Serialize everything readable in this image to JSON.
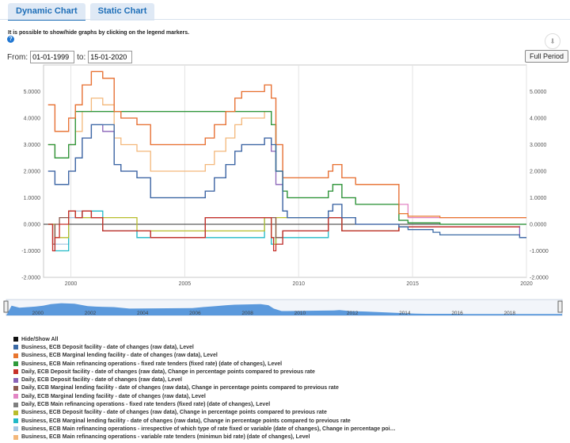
{
  "tabs": [
    {
      "label": "Dynamic Chart"
    },
    {
      "label": "Static Chart"
    }
  ],
  "hint": "It is possible to show/hide graphs by clicking on the legend markers.",
  "help_icon": "?",
  "download_icon": "⬇",
  "range": {
    "from_label": "From:",
    "from_value": "01-01-1999",
    "to_label": "to:",
    "to_value": "15-01-2020",
    "full_period": "Full Period"
  },
  "legend": {
    "hide_show_all": "Hide/Show All",
    "items": [
      {
        "label": "Business, ECB Deposit facility - date of changes (raw data), Level",
        "color": "#3b6aa5"
      },
      {
        "label": "Business, ECB Marginal lending facility - date of changes (raw data), Level",
        "color": "#e8752e"
      },
      {
        "label": "Business, ECB Main refinancing operations - fixed rate tenders (fixed rate) (date of changes), Level",
        "color": "#2f9a3a"
      },
      {
        "label": "Daily, ECB Deposit facility - date of changes (raw data), Change in percentage points compared to previous rate",
        "color": "#c7302a"
      },
      {
        "label": "Daily, ECB Deposit facility - date of changes (raw data), Level",
        "color": "#8a63b8"
      },
      {
        "label": "Daily, ECB Marginal lending facility - date of changes (raw data), Change in percentage points compared to previous rate",
        "color": "#8c5a4e"
      },
      {
        "label": "Daily, ECB Marginal lending facility - date of changes (raw data), Level",
        "color": "#e385c4"
      },
      {
        "label": "Daily, ECB Main refinancing operations - fixed rate tenders (fixed rate) (date of changes), Level",
        "color": "#7f7f7f"
      },
      {
        "label": "Business, ECB Deposit facility - date of changes (raw data), Change in percentage points compared to previous rate",
        "color": "#b8bd2c"
      },
      {
        "label": "Business, ECB Marginal lending facility - date of changes (raw data), Change in percentage points compared to previous rate",
        "color": "#21b9c7"
      },
      {
        "label": "Business, ECB Main refinancing operations - irrespective of which type of rate fixed or variable (date of changes), Change in percentage poi…",
        "color": "#a7c7e3"
      },
      {
        "label": "Business, ECB Main refinancing operations - variable rate tenders (minimun bid rate) (date of changes), Level",
        "color": "#f3b77a"
      }
    ]
  },
  "navigator": {
    "years": [
      "2000",
      "2002",
      "2004",
      "2006",
      "2008",
      "2010",
      "2012",
      "2014",
      "2016",
      "2018"
    ]
  },
  "chart_data": {
    "type": "line",
    "x_ticks": [
      "2000",
      "2005",
      "2010",
      "2015",
      "2020"
    ],
    "y_ticks_left": [
      "5.0000",
      "4.0000",
      "3.0000",
      "2.0000",
      "1.0000",
      "0.0000",
      "-1.0000",
      "-2.0000"
    ],
    "y_ticks_right": [
      "5.0000",
      "4.0000",
      "3.0000",
      "2.0000",
      "1.0000",
      "0.0000",
      "-1.0000",
      "-2.0000"
    ],
    "xlim": [
      1998.8,
      2020.0
    ],
    "ylim": [
      -2.0,
      6.0
    ],
    "grid": true,
    "series": [
      {
        "name": "Business, ECB Deposit facility - date of changes (raw data), Level",
        "color": "#3b6aa5",
        "x": [
          1999.0,
          1999.3,
          1999.9,
          2000.2,
          2000.5,
          2000.9,
          2001.4,
          2001.9,
          2002.2,
          2002.9,
          2003.5,
          2005.9,
          2006.3,
          2006.8,
          2007.2,
          2007.5,
          2008.5,
          2008.8,
          2009.0,
          2009.3,
          2009.5,
          2011.3,
          2011.5,
          2011.9,
          2012.5,
          2014.4,
          2014.8,
          2015.9,
          2016.2,
          2019.7,
          2020.0
        ],
        "y": [
          2.0,
          1.5,
          2.0,
          2.5,
          3.25,
          3.75,
          3.75,
          2.25,
          2.0,
          1.75,
          1.0,
          1.25,
          1.75,
          2.25,
          2.75,
          3.0,
          3.25,
          3.0,
          2.0,
          0.5,
          0.25,
          0.5,
          0.75,
          0.25,
          0.0,
          -0.1,
          -0.2,
          -0.3,
          -0.4,
          -0.5,
          -0.5
        ]
      },
      {
        "name": "Business, ECB Marginal lending facility - date of changes (raw data), Level",
        "color": "#e8752e",
        "x": [
          1999.0,
          1999.3,
          1999.9,
          2000.2,
          2000.5,
          2000.9,
          2001.4,
          2001.9,
          2002.2,
          2002.9,
          2003.5,
          2005.9,
          2006.3,
          2006.8,
          2007.2,
          2007.5,
          2008.5,
          2008.8,
          2009.0,
          2009.3,
          2009.5,
          2011.3,
          2011.5,
          2011.9,
          2012.5,
          2014.4,
          2014.8,
          2015.9,
          2016.2,
          2019.7,
          2020.0
        ],
        "y": [
          4.5,
          3.5,
          4.0,
          4.5,
          5.25,
          5.75,
          5.5,
          4.25,
          4.0,
          3.75,
          3.0,
          3.25,
          3.75,
          4.25,
          4.75,
          5.0,
          5.25,
          4.75,
          3.0,
          1.75,
          1.75,
          2.0,
          2.25,
          1.75,
          1.5,
          0.4,
          0.3,
          0.3,
          0.25,
          0.25,
          0.25
        ]
      },
      {
        "name": "Business, ECB Main refinancing operations - fixed rate tenders (fixed rate) (date of changes), Level",
        "color": "#2f9a3a",
        "x": [
          1999.0,
          1999.3,
          1999.9,
          2000.2,
          2008.8,
          2009.0,
          2009.3,
          2009.5,
          2011.3,
          2011.5,
          2011.9,
          2012.5,
          2014.4,
          2014.8,
          2016.2,
          2019.7,
          2020.0
        ],
        "y": [
          3.0,
          2.5,
          3.0,
          4.25,
          3.75,
          2.0,
          1.25,
          1.0,
          1.25,
          1.5,
          1.0,
          0.75,
          0.15,
          0.05,
          0.0,
          0.0,
          0.0
        ]
      },
      {
        "name": "Daily, ECB Deposit facility - date of changes (raw data), Change in percentage points compared to previous rate",
        "color": "#c7302a",
        "x": [
          1999.0,
          1999.2,
          1999.3,
          1999.5,
          1999.9,
          2000.2,
          2000.5,
          2000.9,
          2001.4,
          2002.9,
          2003.5,
          2005.9,
          2008.5,
          2008.8,
          2008.9,
          2009.0,
          2009.3,
          2011.3,
          2011.9,
          2014.4,
          2019.7
        ],
        "y": [
          0.0,
          -1.0,
          -0.5,
          0.0,
          0.5,
          0.25,
          0.5,
          0.25,
          -0.25,
          -0.25,
          -0.5,
          0.25,
          0.25,
          -0.5,
          -1.0,
          -0.75,
          -0.25,
          0.25,
          -0.25,
          -0.1,
          -0.1
        ]
      },
      {
        "name": "Daily, ECB Deposit facility - date of changes (raw data), Level",
        "color": "#8a63b8",
        "x": [
          1999.0,
          1999.3,
          1999.9,
          2000.2,
          2000.5,
          2000.9,
          2001.4,
          2001.9,
          2002.2,
          2002.9,
          2003.5,
          2005.9,
          2006.3,
          2006.8,
          2007.2,
          2007.5,
          2008.5,
          2008.8,
          2009.0,
          2009.3,
          2009.5,
          2011.3,
          2011.5,
          2011.9,
          2012.5,
          2014.4,
          2019.7,
          2020.0
        ],
        "y": [
          2.0,
          1.5,
          2.0,
          2.5,
          3.25,
          3.75,
          3.5,
          2.25,
          2.0,
          1.75,
          1.0,
          1.25,
          1.75,
          2.25,
          2.75,
          3.0,
          3.25,
          2.75,
          1.5,
          0.5,
          0.25,
          0.5,
          0.75,
          0.25,
          0.0,
          -0.1,
          -0.5,
          -0.5
        ]
      },
      {
        "name": "Daily, ECB Marginal lending facility - date of changes (raw data), Change in percentage points compared to previous rate",
        "color": "#8c5a4e",
        "x": [
          1999.0,
          1999.2,
          1999.3,
          1999.5,
          1999.9,
          2000.2,
          2000.5,
          2000.9,
          2001.4,
          2002.9,
          2003.5,
          2005.9,
          2008.5,
          2008.8,
          2009.0,
          2009.3,
          2011.3,
          2011.9,
          2014.4,
          2019.7
        ],
        "y": [
          0.0,
          -0.75,
          0.0,
          0.25,
          0.5,
          0.25,
          0.5,
          0.25,
          -0.25,
          -0.25,
          -0.5,
          0.25,
          0.25,
          0.25,
          -0.5,
          -0.25,
          0.25,
          -0.25,
          -0.1,
          -0.1
        ]
      },
      {
        "name": "Daily, ECB Marginal lending facility - date of changes (raw data), Level",
        "color": "#e385c4",
        "x": [
          1999.0,
          1999.3,
          1999.9,
          2000.2,
          2000.5,
          2000.9,
          2001.4,
          2001.9,
          2002.2,
          2002.9,
          2003.5,
          2005.9,
          2006.3,
          2006.8,
          2007.2,
          2007.5,
          2008.5,
          2008.8,
          2009.0,
          2009.3,
          2009.5,
          2011.3,
          2011.5,
          2011.9,
          2012.5,
          2014.4,
          2014.8,
          2019.7,
          2020.0
        ],
        "y": [
          4.5,
          3.5,
          4.0,
          4.5,
          5.25,
          5.75,
          5.5,
          4.25,
          4.0,
          3.75,
          3.0,
          3.25,
          3.75,
          4.25,
          4.75,
          5.0,
          5.25,
          4.75,
          3.0,
          1.75,
          1.75,
          2.0,
          2.25,
          1.75,
          1.5,
          0.75,
          0.25,
          0.25,
          0.25
        ]
      },
      {
        "name": "Daily, ECB Main refinancing operations - fixed rate tenders (fixed rate) (date of changes), Level",
        "color": "#7f7f7f",
        "x": [
          1999.0,
          1999.3,
          1999.9,
          2000.2,
          2008.8,
          2009.0,
          2009.3,
          2009.5,
          2011.3,
          2011.5,
          2011.9,
          2012.5,
          2014.4,
          2014.8,
          2016.2,
          2019.7,
          2020.0
        ],
        "y": [
          3.0,
          2.5,
          3.0,
          4.25,
          3.75,
          2.0,
          1.25,
          1.0,
          1.25,
          1.5,
          1.0,
          0.75,
          0.15,
          0.05,
          0.0,
          0.0,
          0.0
        ]
      },
      {
        "name": "Business, ECB Deposit facility - date of changes (raw data), Change in percentage points compared to previous rate",
        "color": "#b8bd2c",
        "x": [
          1999.0,
          1999.3,
          1999.9,
          2000.2,
          2002.9,
          2008.5,
          2008.8,
          2008.9,
          2009.0,
          2011.3,
          2011.9,
          2014.4,
          2019.7
        ],
        "y": [
          0.0,
          -0.5,
          0.5,
          0.25,
          -0.25,
          0.25,
          -0.5,
          -0.75,
          0.25,
          0.25,
          -0.25,
          -0.1,
          -0.1
        ]
      },
      {
        "name": "Business, ECB Marginal lending facility - date of changes (raw data), Change in percentage points compared to previous rate",
        "color": "#21b9c7",
        "x": [
          1999.0,
          1999.3,
          1999.9,
          2000.2,
          2000.5,
          2001.4,
          2002.9,
          2003.5,
          2008.5,
          2008.8,
          2009.0,
          2011.3,
          2011.9,
          2014.4,
          2019.7
        ],
        "y": [
          0.0,
          -1.0,
          0.5,
          0.25,
          0.5,
          -0.25,
          -0.5,
          -0.5,
          0.25,
          -0.75,
          -0.5,
          0.25,
          -0.25,
          -0.1,
          -0.1
        ]
      },
      {
        "name": "Business, ECB Main refinancing operations - irrespective of which type of rate fixed or variable (date of changes), Change in percentage poi…",
        "color": "#a7c7e3",
        "x": [
          1999.0,
          1999.3,
          1999.9,
          2000.2,
          2000.5,
          2001.4,
          2002.9,
          2003.5,
          2005.9,
          2008.5,
          2008.8,
          2009.0,
          2009.3,
          2011.3,
          2011.9,
          2014.4,
          2019.7
        ],
        "y": [
          0.0,
          -0.75,
          0.25,
          0.5,
          0.25,
          -0.25,
          -0.5,
          -0.5,
          0.25,
          0.25,
          -0.5,
          -0.75,
          -0.25,
          0.25,
          -0.25,
          -0.1,
          -0.05
        ]
      },
      {
        "name": "Business, ECB Main refinancing operations - variable rate tenders (minimun bid rate) (date of changes), Level",
        "color": "#f3b77a",
        "x": [
          1999.0,
          1999.3,
          1999.9,
          2000.2,
          2000.5,
          2000.9,
          2001.4,
          2001.9,
          2002.2,
          2002.9,
          2003.5,
          2005.9,
          2006.3,
          2006.8,
          2007.2,
          2007.5,
          2008.5,
          2008.8
        ],
        "y": [
          3.0,
          2.5,
          3.0,
          3.5,
          4.25,
          4.75,
          4.5,
          3.25,
          3.0,
          2.75,
          2.0,
          2.25,
          2.75,
          3.25,
          3.75,
          4.0,
          4.25,
          4.25
        ]
      }
    ]
  }
}
